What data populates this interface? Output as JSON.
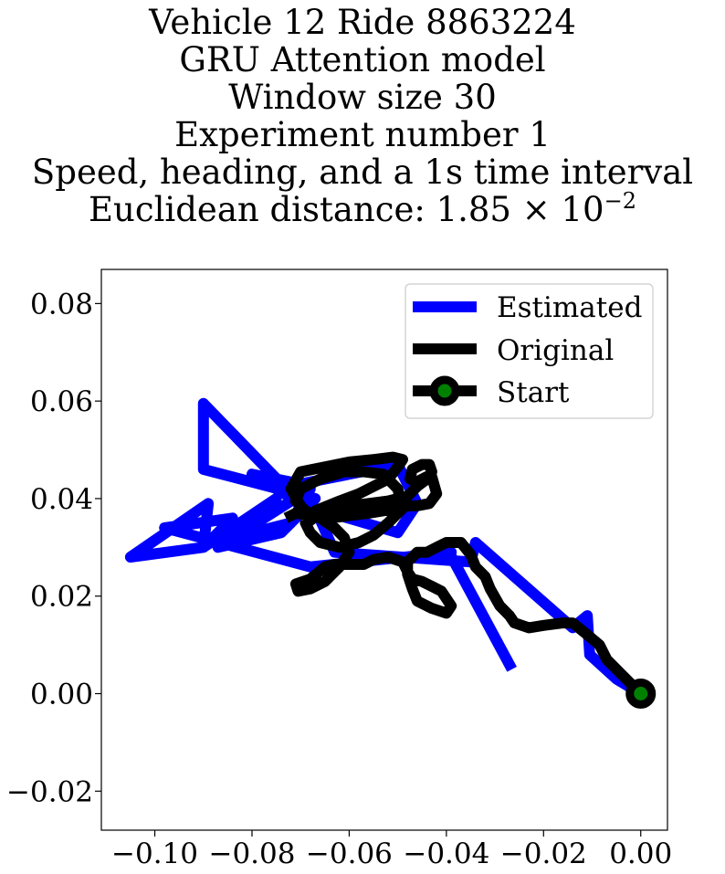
{
  "title_lines": [
    "Vehicle 12 Ride 8863224",
    "GRU Attention model",
    "Window size 30",
    "Experiment number 1",
    "Speed, heading, and a 1s time interval"
  ],
  "distance_line": {
    "prefix": "Euclidean distance: 1.85 × 10",
    "exponent": "−2"
  },
  "chart_data": {
    "type": "line",
    "title": "",
    "xlabel": "",
    "ylabel": "",
    "xlim": [
      -0.111,
      0.0055
    ],
    "ylim": [
      -0.028,
      0.087
    ],
    "xticks": [
      -0.1,
      -0.08,
      -0.06,
      -0.04,
      -0.02,
      0.0
    ],
    "xtick_labels": [
      "−0.10",
      "−0.08",
      "−0.06",
      "−0.04",
      "−0.02",
      "0.00"
    ],
    "yticks": [
      -0.02,
      0.0,
      0.02,
      0.04,
      0.06,
      0.08
    ],
    "ytick_labels": [
      "−0.02",
      "0.00",
      "0.02",
      "0.04",
      "0.06",
      "0.08"
    ],
    "grid": false,
    "legend_position": "top-right",
    "series": [
      {
        "name": "Estimated",
        "color": "#0000ff",
        "x": [
          -0.0265,
          -0.04,
          -0.039,
          -0.068,
          -0.098,
          -0.084,
          -0.09,
          -0.089,
          -0.105,
          -0.09,
          -0.075,
          -0.088,
          -0.072,
          -0.068,
          -0.087,
          -0.074,
          -0.067,
          -0.09,
          -0.09,
          -0.07,
          -0.08,
          -0.07,
          -0.05,
          -0.046,
          -0.05,
          -0.067,
          -0.063,
          -0.035,
          -0.034,
          -0.014,
          -0.011,
          -0.0105,
          -0.005,
          0.0
        ],
        "y": [
          0.005,
          0.03,
          0.029,
          0.026,
          0.034,
          0.036,
          0.03,
          0.039,
          0.028,
          0.03,
          0.04,
          0.031,
          0.035,
          0.042,
          0.03,
          0.033,
          0.04,
          0.046,
          0.0595,
          0.039,
          0.045,
          0.043,
          0.047,
          0.039,
          0.033,
          0.038,
          0.029,
          0.027,
          0.031,
          0.0135,
          0.016,
          0.008,
          0.003,
          0.0
        ]
      },
      {
        "name": "Original",
        "color": "#000000",
        "x": [
          0.0,
          -0.004,
          -0.007,
          -0.0085,
          -0.0115,
          -0.014,
          -0.016,
          -0.02,
          -0.023,
          -0.026,
          -0.027,
          -0.029,
          -0.031,
          -0.032,
          -0.034,
          -0.035,
          -0.037,
          -0.04,
          -0.042,
          -0.044,
          -0.046,
          -0.048,
          -0.048,
          -0.047,
          -0.046,
          -0.043,
          -0.04,
          -0.039,
          -0.041,
          -0.043,
          -0.045,
          -0.047,
          -0.048,
          -0.049,
          -0.052,
          -0.055,
          -0.057,
          -0.06,
          -0.063,
          -0.065,
          -0.068,
          -0.071,
          -0.0705,
          -0.068,
          -0.065,
          -0.062,
          -0.06,
          -0.061,
          -0.063,
          -0.066,
          -0.069,
          -0.071,
          -0.07,
          -0.066,
          -0.061,
          -0.057,
          -0.053,
          -0.05,
          -0.049,
          -0.052,
          -0.055,
          -0.058,
          -0.062,
          -0.066,
          -0.068,
          -0.069,
          -0.067,
          -0.062,
          -0.058,
          -0.055,
          -0.052,
          -0.05,
          -0.049,
          -0.051,
          -0.055,
          -0.06,
          -0.065,
          -0.07,
          -0.072,
          -0.07,
          -0.068,
          -0.068,
          -0.066,
          -0.063,
          -0.06,
          -0.056,
          -0.052,
          -0.048,
          -0.046,
          -0.044,
          -0.043,
          -0.0435,
          -0.045,
          -0.047,
          -0.0475,
          -0.046,
          -0.044,
          -0.043,
          -0.042,
          -0.0435,
          -0.046,
          -0.048,
          -0.05,
          -0.053,
          -0.056,
          -0.06,
          -0.064,
          -0.068,
          -0.071,
          -0.073
        ],
        "y": [
          0.0,
          0.004,
          0.007,
          0.01,
          0.0125,
          0.0145,
          0.0145,
          0.014,
          0.0135,
          0.0145,
          0.016,
          0.018,
          0.0215,
          0.024,
          0.026,
          0.0285,
          0.031,
          0.031,
          0.03,
          0.029,
          0.029,
          0.027,
          0.0245,
          0.0215,
          0.019,
          0.0175,
          0.0165,
          0.018,
          0.021,
          0.022,
          0.023,
          0.0235,
          0.025,
          0.027,
          0.028,
          0.0275,
          0.0265,
          0.0265,
          0.0265,
          0.026,
          0.0235,
          0.0225,
          0.021,
          0.0215,
          0.023,
          0.026,
          0.029,
          0.032,
          0.034,
          0.036,
          0.0375,
          0.0395,
          0.042,
          0.044,
          0.0455,
          0.0455,
          0.045,
          0.042,
          0.038,
          0.035,
          0.0325,
          0.031,
          0.03,
          0.031,
          0.033,
          0.035,
          0.0375,
          0.0395,
          0.041,
          0.0425,
          0.044,
          0.0465,
          0.048,
          0.0485,
          0.048,
          0.0475,
          0.0465,
          0.0455,
          0.042,
          0.0385,
          0.036,
          0.0355,
          0.037,
          0.038,
          0.0385,
          0.039,
          0.0395,
          0.0405,
          0.0425,
          0.044,
          0.0455,
          0.047,
          0.047,
          0.046,
          0.044,
          0.0435,
          0.0445,
          0.0445,
          0.041,
          0.039,
          0.0385,
          0.0385,
          0.038,
          0.0375,
          0.037,
          0.0365,
          0.036,
          0.0365,
          0.037,
          0.036
        ]
      }
    ],
    "start": {
      "name": "Start",
      "x": 0.0,
      "y": 0.0,
      "edge_color": "#000000",
      "fill_color": "#008000"
    }
  }
}
